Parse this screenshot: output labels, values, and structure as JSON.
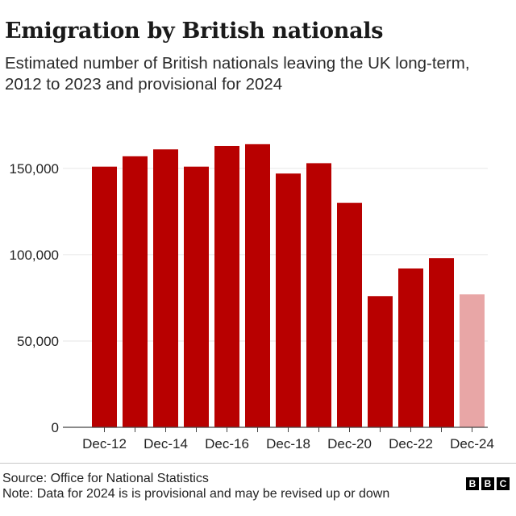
{
  "header": {
    "title": "Emigration by British nationals",
    "subtitle": "Estimated number of British nationals leaving the UK long-term, 2012 to 2023 and provisional for 2024"
  },
  "footer": {
    "source": "Source: Office for National Statistics",
    "note": "Note: Data for 2024 is is provisional and may be revised up or down",
    "logo_letters": [
      "B",
      "B",
      "C"
    ]
  },
  "colors": {
    "bar": "#b80000",
    "bar_provisional": "#e8a6a6",
    "gridline": "#e6e6e6",
    "axis": "#444444",
    "text": "#222222"
  },
  "chart_data": {
    "type": "bar",
    "title": "Emigration by British nationals",
    "xlabel": "",
    "ylabel": "",
    "ylim": [
      0,
      170000
    ],
    "yticks": [
      0,
      50000,
      100000,
      150000
    ],
    "ytick_labels": [
      "0",
      "50,000",
      "100,000",
      "150,000"
    ],
    "categories": [
      "Dec-12",
      "Dec-13",
      "Dec-14",
      "Dec-15",
      "Dec-16",
      "Dec-17",
      "Dec-18",
      "Dec-19",
      "Dec-20",
      "Dec-21",
      "Dec-22",
      "Dec-23",
      "Dec-24"
    ],
    "xtick_labels": [
      "Dec-12",
      "",
      "Dec-14",
      "",
      "Dec-16",
      "",
      "Dec-18",
      "",
      "Dec-20",
      "",
      "Dec-22",
      "",
      "Dec-24"
    ],
    "values": [
      151000,
      157000,
      161000,
      151000,
      163000,
      164000,
      147000,
      153000,
      130000,
      76000,
      92000,
      98000,
      77000
    ],
    "provisional": [
      false,
      false,
      false,
      false,
      false,
      false,
      false,
      false,
      false,
      false,
      false,
      false,
      true
    ],
    "grid": true
  }
}
